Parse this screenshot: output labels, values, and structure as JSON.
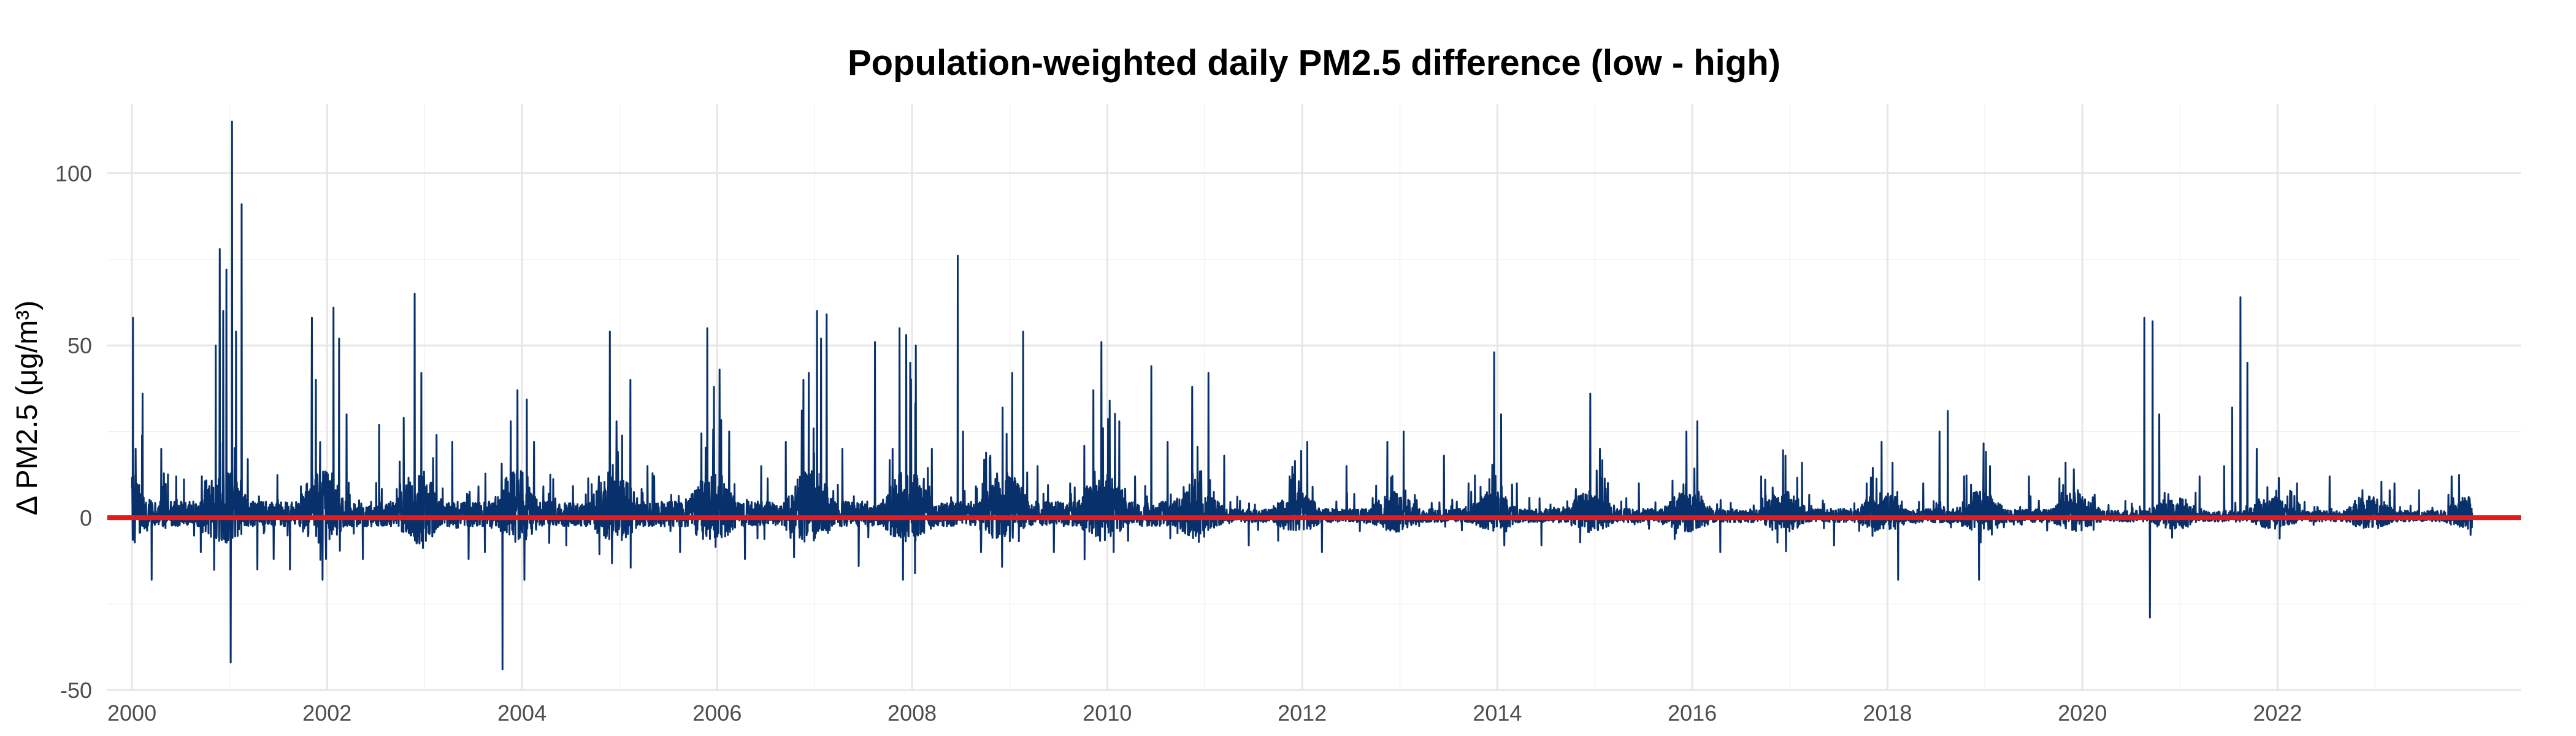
{
  "chart_data": {
    "type": "line",
    "title": "Population-weighted daily PM2.5 difference (low - high)",
    "xlabel": "",
    "ylabel": "Δ PM2.5 (μg/m³)",
    "x_range": [
      "2000-01-01",
      "2023-12-31"
    ],
    "xlim": [
      "1999-10-01",
      "2024-06-30"
    ],
    "ylim": [
      -50,
      120
    ],
    "x_ticks": [
      "2000",
      "2002",
      "2004",
      "2006",
      "2008",
      "2010",
      "2012",
      "2014",
      "2016",
      "2018",
      "2020",
      "2022"
    ],
    "y_ticks": [
      -50,
      0,
      50,
      100
    ],
    "grid": true,
    "legend": "none",
    "reference_line": {
      "y": 0,
      "color": "#e41a1c"
    },
    "series_color": "#08306b",
    "series": [
      {
        "points": [
          [
            "2000-01-05",
            58
          ],
          [
            "2000-01-15",
            20
          ],
          [
            "2000-02-10",
            36
          ],
          [
            "2000-03-15",
            -18
          ],
          [
            "2000-04-20",
            20
          ],
          [
            "2000-06-15",
            12
          ],
          [
            "2000-09-15",
            -10
          ],
          [
            "2000-11-10",
            50
          ],
          [
            "2000-11-25",
            78
          ],
          [
            "2000-12-08",
            60
          ],
          [
            "2000-12-20",
            72
          ],
          [
            "2001-01-05",
            -42
          ],
          [
            "2001-01-10",
            115
          ],
          [
            "2001-01-25",
            54
          ],
          [
            "2001-02-15",
            91
          ],
          [
            "2001-03-10",
            17
          ],
          [
            "2001-04-15",
            -15
          ],
          [
            "2001-06-15",
            -12
          ],
          [
            "2001-08-15",
            -15
          ],
          [
            "2001-11-05",
            58
          ],
          [
            "2001-11-20",
            40
          ],
          [
            "2001-12-15",
            -18
          ],
          [
            "2002-01-25",
            61
          ],
          [
            "2002-02-15",
            52
          ],
          [
            "2002-03-15",
            30
          ],
          [
            "2002-05-15",
            -12
          ],
          [
            "2002-07-15",
            27
          ],
          [
            "2002-10-15",
            29
          ],
          [
            "2002-11-25",
            65
          ],
          [
            "2002-12-20",
            42
          ],
          [
            "2003-02-15",
            24
          ],
          [
            "2003-04-15",
            22
          ],
          [
            "2003-06-15",
            -12
          ],
          [
            "2003-08-15",
            -10
          ],
          [
            "2003-10-20",
            -44
          ],
          [
            "2003-11-20",
            28
          ],
          [
            "2003-12-15",
            37
          ],
          [
            "2004-01-10",
            -18
          ],
          [
            "2004-02-15",
            22
          ],
          [
            "2004-06-15",
            -8
          ],
          [
            "2004-10-15",
            12
          ],
          [
            "2004-11-25",
            54
          ],
          [
            "2004-12-20",
            28
          ],
          [
            "2005-02-10",
            40
          ],
          [
            "2005-04-15",
            15
          ],
          [
            "2005-08-15",
            -10
          ],
          [
            "2005-10-15",
            8
          ],
          [
            "2005-11-25",
            55
          ],
          [
            "2005-12-20",
            38
          ],
          [
            "2006-01-10",
            43
          ],
          [
            "2006-02-15",
            25
          ],
          [
            "2006-04-15",
            -12
          ],
          [
            "2006-06-15",
            15
          ],
          [
            "2006-09-15",
            22
          ],
          [
            "2006-11-20",
            40
          ],
          [
            "2006-12-10",
            42
          ],
          [
            "2007-01-10",
            60
          ],
          [
            "2007-01-25",
            52
          ],
          [
            "2007-02-15",
            59
          ],
          [
            "2007-04-15",
            20
          ],
          [
            "2007-06-15",
            -14
          ],
          [
            "2007-08-15",
            51
          ],
          [
            "2007-10-20",
            20
          ],
          [
            "2007-11-15",
            55
          ],
          [
            "2007-11-28",
            -18
          ],
          [
            "2007-12-10",
            53
          ],
          [
            "2007-12-25",
            45
          ],
          [
            "2008-01-15",
            50
          ],
          [
            "2008-03-15",
            20
          ],
          [
            "2008-06-20",
            76
          ],
          [
            "2008-07-10",
            25
          ],
          [
            "2008-09-15",
            -10
          ],
          [
            "2008-10-20",
            18
          ],
          [
            "2008-12-05",
            32
          ],
          [
            "2009-01-10",
            42
          ],
          [
            "2009-02-20",
            54
          ],
          [
            "2009-04-15",
            15
          ],
          [
            "2009-06-15",
            -10
          ],
          [
            "2009-08-15",
            10
          ],
          [
            "2009-11-10",
            37
          ],
          [
            "2009-12-10",
            51
          ],
          [
            "2010-01-10",
            34
          ],
          [
            "2010-02-15",
            28
          ],
          [
            "2010-04-15",
            12
          ],
          [
            "2010-06-15",
            44
          ],
          [
            "2010-08-15",
            22
          ],
          [
            "2010-11-15",
            38
          ],
          [
            "2011-01-15",
            42
          ],
          [
            "2011-03-15",
            18
          ],
          [
            "2011-06-15",
            -8
          ],
          [
            "2011-11-15",
            12
          ],
          [
            "2012-01-20",
            22
          ],
          [
            "2012-03-15",
            -10
          ],
          [
            "2012-06-15",
            15
          ],
          [
            "2012-11-15",
            22
          ],
          [
            "2013-01-15",
            25
          ],
          [
            "2013-06-15",
            18
          ],
          [
            "2013-09-15",
            10
          ],
          [
            "2013-12-20",
            48
          ],
          [
            "2014-01-15",
            30
          ],
          [
            "2014-03-15",
            10
          ],
          [
            "2014-06-15",
            -8
          ],
          [
            "2014-12-15",
            36
          ],
          [
            "2015-01-20",
            20
          ],
          [
            "2015-06-15",
            10
          ],
          [
            "2015-12-10",
            25
          ],
          [
            "2016-01-20",
            28
          ],
          [
            "2016-04-15",
            -10
          ],
          [
            "2016-09-15",
            12
          ],
          [
            "2016-12-15",
            18
          ],
          [
            "2017-02-15",
            16
          ],
          [
            "2017-06-15",
            -8
          ],
          [
            "2017-10-15",
            10
          ],
          [
            "2017-12-10",
            22
          ],
          [
            "2018-01-20",
            16
          ],
          [
            "2018-02-10",
            -18
          ],
          [
            "2018-05-15",
            10
          ],
          [
            "2018-07-15",
            25
          ],
          [
            "2018-08-15",
            31
          ],
          [
            "2018-10-15",
            12
          ],
          [
            "2018-12-10",
            -18
          ],
          [
            "2019-01-20",
            15
          ],
          [
            "2019-06-15",
            12
          ],
          [
            "2019-12-15",
            8
          ],
          [
            "2020-08-20",
            58
          ],
          [
            "2020-09-10",
            -29
          ],
          [
            "2020-09-20",
            57
          ],
          [
            "2020-10-15",
            30
          ],
          [
            "2021-03-15",
            12
          ],
          [
            "2021-06-15",
            15
          ],
          [
            "2021-07-15",
            32
          ],
          [
            "2021-08-15",
            64
          ],
          [
            "2021-09-10",
            45
          ],
          [
            "2021-10-15",
            20
          ],
          [
            "2022-03-15",
            10
          ],
          [
            "2022-07-15",
            12
          ],
          [
            "2022-11-15",
            8
          ],
          [
            "2023-03-15",
            10
          ],
          [
            "2023-06-15",
            8
          ],
          [
            "2023-10-15",
            12
          ],
          [
            "2023-12-25",
            -5
          ]
        ]
      }
    ]
  }
}
